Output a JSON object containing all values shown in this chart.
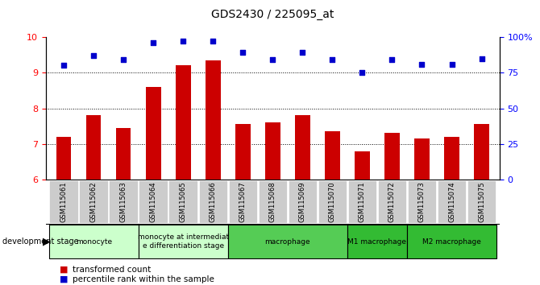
{
  "title": "GDS2430 / 225095_at",
  "samples": [
    "GSM115061",
    "GSM115062",
    "GSM115063",
    "GSM115064",
    "GSM115065",
    "GSM115066",
    "GSM115067",
    "GSM115068",
    "GSM115069",
    "GSM115070",
    "GSM115071",
    "GSM115072",
    "GSM115073",
    "GSM115074",
    "GSM115075"
  ],
  "bar_values": [
    7.2,
    7.8,
    7.45,
    8.6,
    9.2,
    9.35,
    7.55,
    7.6,
    7.8,
    7.35,
    6.8,
    7.3,
    7.15,
    7.2,
    7.55
  ],
  "dot_values": [
    80,
    87,
    84,
    96,
    97,
    97,
    89,
    84,
    89,
    84,
    75,
    84,
    81,
    81,
    85
  ],
  "bar_color": "#cc0000",
  "dot_color": "#0000cc",
  "ylim_left": [
    6,
    10
  ],
  "ylim_right": [
    0,
    100
  ],
  "yticks_left": [
    6,
    7,
    8,
    9,
    10
  ],
  "yticks_right": [
    0,
    25,
    50,
    75,
    100
  ],
  "ytick_labels_right": [
    "0",
    "25",
    "50",
    "75",
    "100%"
  ],
  "dotted_lines": [
    7,
    8,
    9
  ],
  "groups": [
    {
      "label": "monocyte",
      "start": 0,
      "end": 3,
      "color": "#ccffcc"
    },
    {
      "label": "monocyte at intermediat\ne differentiation stage",
      "start": 3,
      "end": 6,
      "color": "#ccffcc"
    },
    {
      "label": "macrophage",
      "start": 6,
      "end": 10,
      "color": "#66cc66"
    },
    {
      "label": "M1 macrophage",
      "start": 10,
      "end": 12,
      "color": "#44cc44"
    },
    {
      "label": "M2 macrophage",
      "start": 12,
      "end": 15,
      "color": "#44cc44"
    }
  ],
  "legend_bar_label": "transformed count",
  "legend_dot_label": "percentile rank within the sample",
  "dev_stage_label": "development stage",
  "bg_color_plot": "#ffffff",
  "xticklabel_bg": "#cccccc"
}
